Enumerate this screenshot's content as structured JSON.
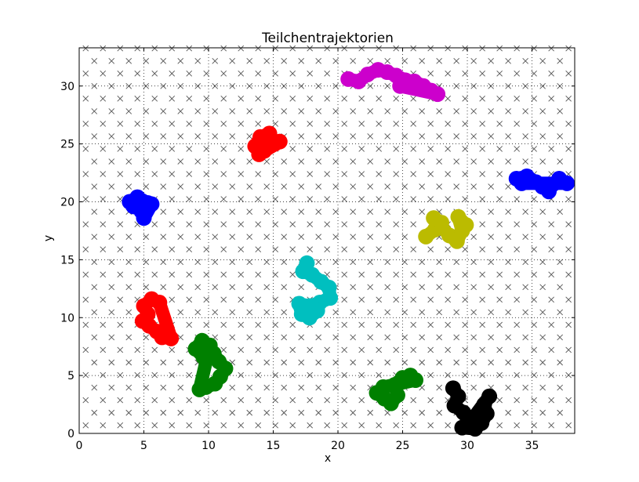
{
  "chart_data": {
    "type": "scatter",
    "title": "Teilchentrajektorien",
    "xlabel": "x",
    "ylabel": "y",
    "xlim": [
      0,
      38.3
    ],
    "ylim": [
      0,
      33.3
    ],
    "xticks": [
      0,
      5,
      10,
      15,
      20,
      25,
      30,
      35
    ],
    "yticks": [
      0,
      5,
      10,
      15,
      20,
      25,
      30
    ],
    "grid": true,
    "background_markers": {
      "marker": "x",
      "color": "#555555",
      "description": "regular lattice of x markers",
      "x_start": 0.5,
      "x_step": 1.333,
      "y_start": 0.7,
      "y_step": 1.085
    },
    "series": [
      {
        "color": "#cc00cc",
        "points": [
          [
            20.8,
            30.6
          ],
          [
            21.6,
            30.4
          ],
          [
            22.3,
            31.0
          ],
          [
            23.1,
            31.4
          ],
          [
            23.8,
            31.2
          ],
          [
            24.5,
            30.9
          ],
          [
            25.2,
            30.5
          ],
          [
            25.9,
            30.4
          ],
          [
            26.6,
            30.0
          ],
          [
            27.2,
            29.6
          ],
          [
            27.7,
            29.3
          ],
          [
            24.8,
            30.0
          ]
        ]
      },
      {
        "color": "#ff0000",
        "points": [
          [
            13.6,
            24.8
          ],
          [
            14.0,
            25.6
          ],
          [
            14.7,
            25.9
          ],
          [
            15.1,
            25.0
          ],
          [
            14.3,
            24.4
          ],
          [
            13.9,
            24.1
          ],
          [
            15.5,
            25.2
          ]
        ]
      },
      {
        "color": "#0000ff",
        "points": [
          [
            3.9,
            20.0
          ],
          [
            4.5,
            20.4
          ],
          [
            5.3,
            19.9
          ],
          [
            4.8,
            19.2
          ],
          [
            5.0,
            18.6
          ],
          [
            5.6,
            19.8
          ],
          [
            4.2,
            19.6
          ]
        ]
      },
      {
        "color": "#0000ff",
        "points": [
          [
            33.8,
            22.0
          ],
          [
            34.6,
            22.2
          ],
          [
            35.3,
            21.7
          ],
          [
            35.8,
            21.3
          ],
          [
            36.3,
            20.9
          ],
          [
            36.6,
            21.5
          ],
          [
            37.1,
            22.0
          ],
          [
            37.7,
            21.6
          ],
          [
            34.2,
            21.6
          ]
        ]
      },
      {
        "color": "#bbbb00",
        "points": [
          [
            26.8,
            17.0
          ],
          [
            27.5,
            17.6
          ],
          [
            28.0,
            18.2
          ],
          [
            27.4,
            18.6
          ],
          [
            28.6,
            17.1
          ],
          [
            29.2,
            16.6
          ],
          [
            29.6,
            17.5
          ],
          [
            29.3,
            18.7
          ],
          [
            29.9,
            18.0
          ]
        ]
      },
      {
        "color": "#00bfbf",
        "points": [
          [
            17.6,
            14.7
          ],
          [
            17.3,
            14.0
          ],
          [
            18.0,
            13.7
          ],
          [
            18.7,
            13.1
          ],
          [
            19.3,
            12.6
          ],
          [
            19.4,
            11.7
          ],
          [
            18.6,
            11.3
          ],
          [
            17.8,
            11.0
          ],
          [
            17.0,
            11.2
          ],
          [
            17.2,
            10.3
          ],
          [
            17.8,
            10.0
          ],
          [
            18.4,
            10.6
          ]
        ]
      },
      {
        "color": "#ff0000",
        "points": [
          [
            5.6,
            11.6
          ],
          [
            5.0,
            11.0
          ],
          [
            5.3,
            10.3
          ],
          [
            4.9,
            9.7
          ],
          [
            5.4,
            9.3
          ],
          [
            6.0,
            8.8
          ],
          [
            6.4,
            8.3
          ],
          [
            7.1,
            8.2
          ],
          [
            6.2,
            11.3
          ]
        ]
      },
      {
        "color": "#008000",
        "points": [
          [
            9.5,
            8.0
          ],
          [
            9.0,
            7.3
          ],
          [
            9.6,
            6.6
          ],
          [
            10.4,
            6.9
          ],
          [
            10.8,
            6.2
          ],
          [
            11.3,
            5.6
          ],
          [
            10.9,
            4.9
          ],
          [
            10.5,
            4.3
          ],
          [
            9.8,
            4.0
          ],
          [
            9.3,
            3.8
          ],
          [
            10.1,
            7.6
          ]
        ]
      },
      {
        "color": "#008000",
        "points": [
          [
            23.0,
            3.5
          ],
          [
            23.6,
            3.0
          ],
          [
            24.1,
            2.6
          ],
          [
            24.6,
            3.3
          ],
          [
            24.4,
            4.2
          ],
          [
            25.0,
            4.8
          ],
          [
            25.6,
            5.0
          ],
          [
            26.0,
            4.6
          ],
          [
            23.5,
            4.0
          ]
        ]
      },
      {
        "color": "#000000",
        "points": [
          [
            28.9,
            3.9
          ],
          [
            29.3,
            3.2
          ],
          [
            29.0,
            2.4
          ],
          [
            29.7,
            1.8
          ],
          [
            30.1,
            1.0
          ],
          [
            29.6,
            0.5
          ],
          [
            30.6,
            0.4
          ],
          [
            31.1,
            0.9
          ],
          [
            31.5,
            1.7
          ],
          [
            31.3,
            2.5
          ],
          [
            31.7,
            3.2
          ],
          [
            30.5,
            1.4
          ]
        ]
      }
    ]
  }
}
